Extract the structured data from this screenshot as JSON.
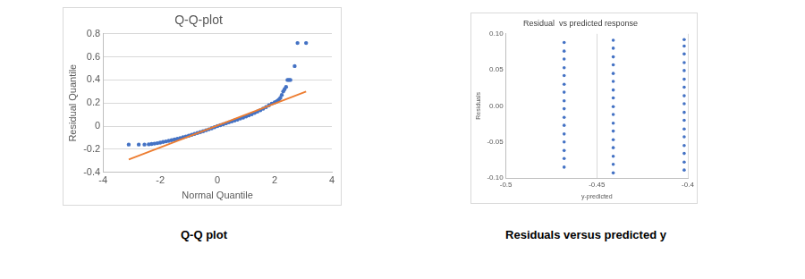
{
  "chart_data": [
    {
      "type": "scatter",
      "title": "Q-Q-plot",
      "caption": "Q-Q plot",
      "x_label": "Normal Quantile",
      "y_label": "Residual Quantile",
      "xlim": [
        -4,
        4
      ],
      "xticks": [
        -4,
        -2,
        0,
        2,
        4
      ],
      "ylim": [
        -0.4,
        0.8
      ],
      "yticks": [
        -0.4,
        -0.2,
        0,
        0.2,
        0.4,
        0.6,
        0.8
      ],
      "grid": "y",
      "series": [
        {
          "type": "scatter",
          "color": "#4472c4",
          "marker": "circle",
          "x": [
            -3.1,
            -2.75,
            -2.55,
            -2.4,
            -2.3,
            -2.2,
            -2.1,
            -2.0,
            -1.9,
            -1.8,
            -1.7,
            -1.6,
            -1.5,
            -1.4,
            -1.3,
            -1.2,
            -1.1,
            -1.0,
            -0.9,
            -0.8,
            -0.7,
            -0.6,
            -0.5,
            -0.4,
            -0.3,
            -0.2,
            -0.1,
            0.0,
            0.1,
            0.2,
            0.3,
            0.4,
            0.5,
            0.6,
            0.7,
            0.8,
            0.9,
            1.0,
            1.1,
            1.2,
            1.3,
            1.4,
            1.5,
            1.6,
            1.7,
            1.8,
            1.9,
            2.0,
            2.05,
            2.1,
            2.15,
            2.2,
            2.25,
            2.3,
            2.35,
            2.4,
            2.45,
            2.5,
            2.55,
            2.7,
            2.8,
            3.1
          ],
          "values": [
            -0.16,
            -0.16,
            -0.16,
            -0.158,
            -0.155,
            -0.152,
            -0.148,
            -0.143,
            -0.138,
            -0.133,
            -0.128,
            -0.122,
            -0.116,
            -0.11,
            -0.104,
            -0.097,
            -0.09,
            -0.083,
            -0.076,
            -0.068,
            -0.06,
            -0.052,
            -0.044,
            -0.036,
            -0.028,
            -0.019,
            -0.01,
            0.0,
            0.008,
            0.016,
            0.024,
            0.032,
            0.04,
            0.048,
            0.056,
            0.065,
            0.074,
            0.083,
            0.093,
            0.103,
            0.114,
            0.126,
            0.138,
            0.151,
            0.165,
            0.18,
            0.195,
            0.205,
            0.21,
            0.22,
            0.23,
            0.245,
            0.27,
            0.3,
            0.32,
            0.34,
            0.4,
            0.4,
            0.4,
            0.52,
            0.72,
            0.72
          ]
        },
        {
          "type": "line",
          "color": "#ed7d31",
          "line_style": "solid",
          "x": [
            -3.1,
            3.1
          ],
          "values": [
            -0.29,
            0.3
          ]
        }
      ]
    },
    {
      "type": "scatter",
      "title": "Residual  vs predicted response",
      "caption": "Residuals versus predicted y",
      "x_label": "y-predicted",
      "y_label": "Residuals",
      "xlim": [
        -0.5,
        -0.4
      ],
      "xticks": [
        -0.5,
        -0.45,
        -0.4
      ],
      "ylim": [
        -0.1,
        0.1
      ],
      "yticks": [
        {
          "value": -0.1,
          "label": "-0.10"
        },
        {
          "value": -0.05,
          "label": "-0.05"
        },
        {
          "value": 0,
          "label": "0.00"
        },
        {
          "value": 0.05,
          "label": "0.05"
        },
        {
          "value": 0.1,
          "label": "0.10"
        }
      ],
      "grid": "x",
      "series": [
        {
          "type": "scatter",
          "color": "#4472c4",
          "marker": "circle",
          "x": [
            -0.468,
            -0.468,
            -0.468,
            -0.468,
            -0.468,
            -0.468,
            -0.468,
            -0.468,
            -0.468,
            -0.468,
            -0.468,
            -0.468,
            -0.468,
            -0.468,
            -0.468,
            -0.468,
            -0.441,
            -0.441,
            -0.441,
            -0.441,
            -0.441,
            -0.441,
            -0.441,
            -0.441,
            -0.441,
            -0.441,
            -0.441,
            -0.441,
            -0.441,
            -0.441,
            -0.441,
            -0.441,
            -0.441,
            -0.402,
            -0.402,
            -0.402,
            -0.402,
            -0.402,
            -0.402,
            -0.402,
            -0.402,
            -0.402,
            -0.402,
            -0.402,
            -0.402,
            -0.402,
            -0.402,
            -0.402,
            -0.402,
            -0.402
          ],
          "values": [
            -0.085,
            -0.073,
            -0.062,
            -0.05,
            -0.039,
            -0.027,
            -0.016,
            -0.004,
            0.007,
            0.019,
            0.03,
            0.042,
            0.053,
            0.065,
            0.076,
            0.088,
            -0.093,
            -0.081,
            -0.07,
            -0.058,
            -0.047,
            -0.035,
            -0.024,
            -0.012,
            -0.001,
            0.011,
            0.022,
            0.034,
            0.045,
            0.057,
            0.068,
            0.08,
            0.091,
            -0.089,
            -0.078,
            -0.066,
            -0.055,
            -0.043,
            -0.032,
            -0.02,
            -0.009,
            0.003,
            0.014,
            0.026,
            0.037,
            0.049,
            0.06,
            0.072,
            0.083,
            0.092
          ]
        }
      ]
    }
  ]
}
